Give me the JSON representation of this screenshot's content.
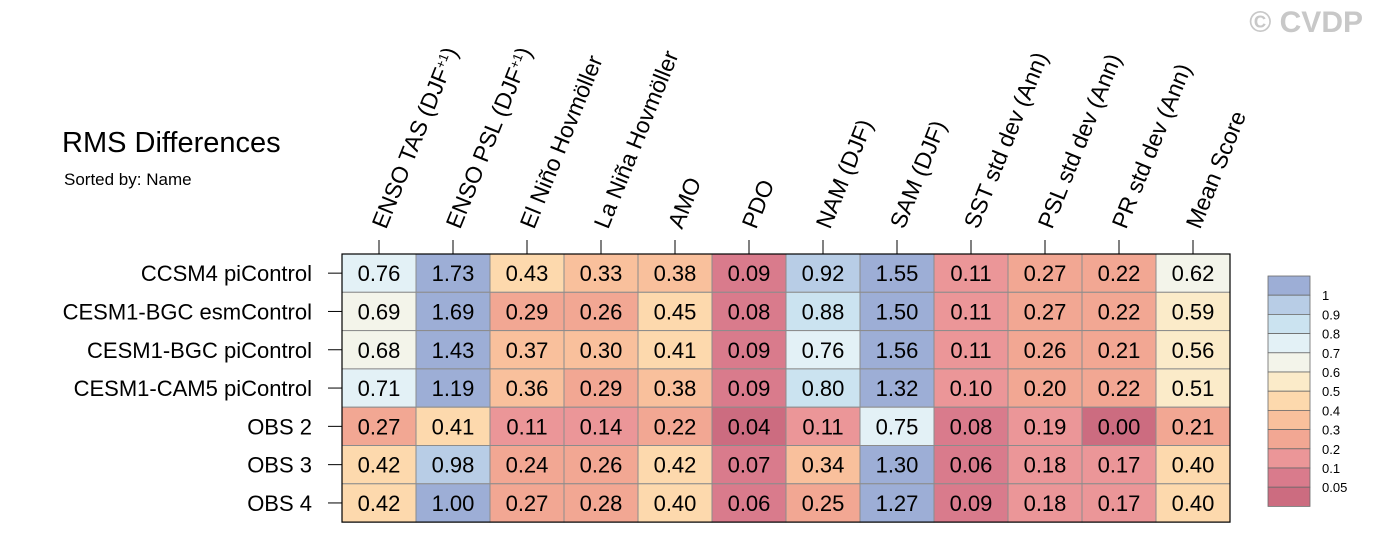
{
  "watermark": "© CVDP",
  "header": {
    "title": "RMS Differences",
    "subtitle": "Sorted by: Name"
  },
  "chart_data": {
    "type": "heatmap",
    "title": "RMS Differences",
    "subtitle": "Sorted by: Name",
    "columns": [
      {
        "main": "ENSO TAS (DJF",
        "sup": "+1",
        "close": ")"
      },
      {
        "main": "ENSO PSL (DJF",
        "sup": "+1",
        "close": ")"
      },
      {
        "main": "El Niño Hovmöller"
      },
      {
        "main": "La Niña Hovmöller"
      },
      {
        "main": "AMO"
      },
      {
        "main": "PDO"
      },
      {
        "main": "NAM (DJF)"
      },
      {
        "main": "SAM (DJF)"
      },
      {
        "main": "SST std dev (Ann)"
      },
      {
        "main": "PSL std dev (Ann)"
      },
      {
        "main": "PR std dev (Ann)"
      },
      {
        "main": "Mean Score"
      }
    ],
    "rows": [
      "CCSM4 piControl",
      "CESM1-BGC esmControl",
      "CESM1-BGC piControl",
      "CESM1-CAM5 piControl",
      "OBS 2",
      "OBS 3",
      "OBS 4"
    ],
    "values": [
      [
        "0.76",
        "1.73",
        "0.43",
        "0.33",
        "0.38",
        "0.09",
        "0.92",
        "1.55",
        "0.11",
        "0.27",
        "0.22",
        "0.62"
      ],
      [
        "0.69",
        "1.69",
        "0.29",
        "0.26",
        "0.45",
        "0.08",
        "0.88",
        "1.50",
        "0.11",
        "0.27",
        "0.22",
        "0.59"
      ],
      [
        "0.68",
        "1.43",
        "0.37",
        "0.30",
        "0.41",
        "0.09",
        "0.76",
        "1.56",
        "0.11",
        "0.26",
        "0.21",
        "0.56"
      ],
      [
        "0.71",
        "1.19",
        "0.36",
        "0.29",
        "0.38",
        "0.09",
        "0.80",
        "1.32",
        "0.10",
        "0.20",
        "0.22",
        "0.51"
      ],
      [
        "0.27",
        "0.41",
        "0.11",
        "0.14",
        "0.22",
        "0.04",
        "0.11",
        "0.75",
        "0.08",
        "0.19",
        "0.00",
        "0.21"
      ],
      [
        "0.42",
        "0.98",
        "0.24",
        "0.26",
        "0.42",
        "0.07",
        "0.34",
        "1.30",
        "0.06",
        "0.18",
        "0.17",
        "0.40"
      ],
      [
        "0.42",
        "1.00",
        "0.27",
        "0.28",
        "0.40",
        "0.06",
        "0.25",
        "1.27",
        "0.09",
        "0.18",
        "0.17",
        "0.40"
      ]
    ],
    "colorbar": {
      "levels": [
        "1",
        "0.9",
        "0.8",
        "0.7",
        "0.6",
        "0.5",
        "0.4",
        "0.3",
        "0.2",
        "0.1",
        "0.05"
      ],
      "colors": [
        "#9daed6",
        "#b8cde6",
        "#cbe3f0",
        "#e3f1f6",
        "#f3f4ea",
        "#fbebc9",
        "#fdd9ad",
        "#f9c09c",
        "#f2a793",
        "#eb9698",
        "#d97b8c",
        "#cc6c80"
      ]
    }
  }
}
